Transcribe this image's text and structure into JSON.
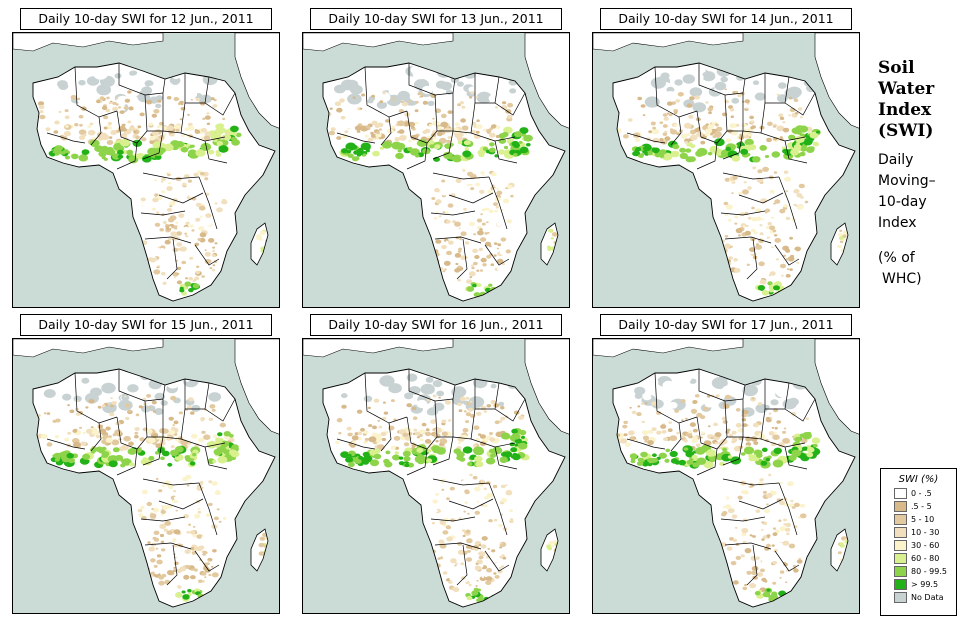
{
  "panels": [
    {
      "title": "Daily 10-day SWI for  12 Jun., 2011",
      "scene": 0
    },
    {
      "title": "Daily 10-day SWI for  13 Jun., 2011",
      "scene": 1
    },
    {
      "title": "Daily 10-day SWI for  14 Jun., 2011",
      "scene": 2
    },
    {
      "title": "Daily 10-day SWI for  15 Jun., 2011",
      "scene": 3
    },
    {
      "title": "Daily 10-day SWI for  16 Jun., 2011",
      "scene": 4
    },
    {
      "title": "Daily 10-day SWI for  17 Jun., 2011",
      "scene": 5
    }
  ],
  "sidebar": {
    "heading": [
      "Soil",
      "Water",
      "Index",
      "(SWI)"
    ],
    "description": [
      "Daily",
      "Moving–",
      "10-day",
      "Index"
    ],
    "units": [
      "(% of",
      "WHC)"
    ]
  },
  "legend": {
    "title": "SWI (%)",
    "items": [
      {
        "label": "0 - .5",
        "color": "#ffffff"
      },
      {
        "label": ".5 - 5",
        "color": "#d7b98a"
      },
      {
        "label": "5 - 10",
        "color": "#e3c99f"
      },
      {
        "label": "10 - 30",
        "color": "#f1dfbd"
      },
      {
        "label": "30 - 60",
        "color": "#fbf3cc"
      },
      {
        "label": "60 - 80",
        "color": "#d9f08f"
      },
      {
        "label": "80 - 99.5",
        "color": "#8ed44a"
      },
      {
        "label": "> 99.5",
        "color": "#22b218"
      },
      {
        "label": "No Data",
        "color": "#c9d2d2"
      }
    ]
  },
  "colors": {
    "ocean": "#cbdcd6",
    "land": "#ffffff",
    "border": "#000000"
  }
}
